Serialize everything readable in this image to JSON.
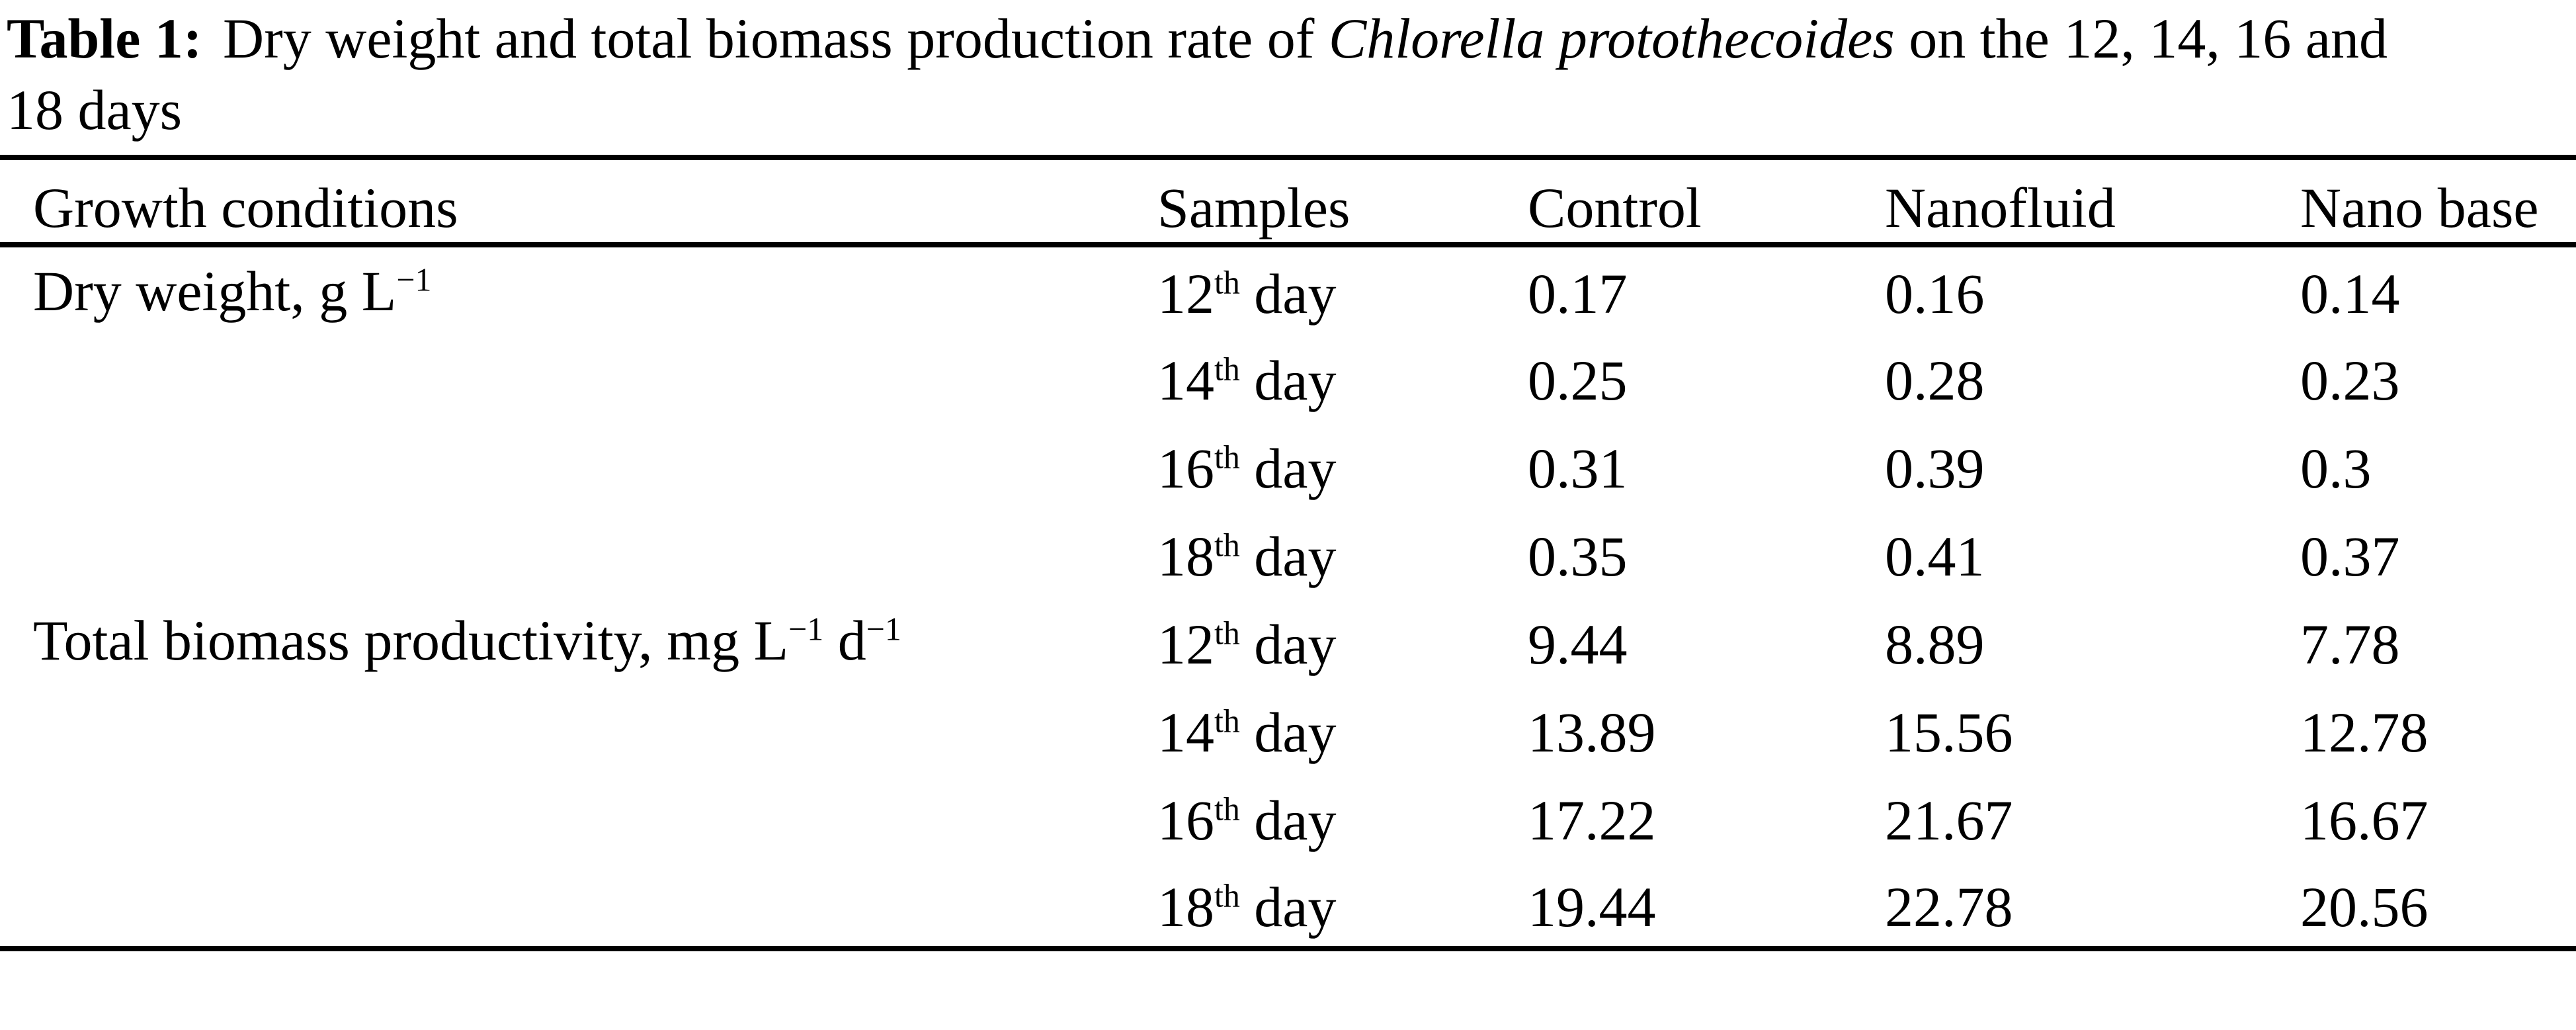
{
  "caption": {
    "label": "Table 1:",
    "before_species": " Dry weight and total biomass production rate of ",
    "species": "Chlorella protothecoides",
    "after_species": " on the 12, 14, 16 and",
    "line2": "18 days"
  },
  "table": {
    "headers": {
      "growth_conditions": "Growth conditions",
      "samples": "Samples",
      "control": "Control",
      "nanofluid": "Nanofluid",
      "nano_base": "Nano base"
    },
    "sections": [
      {
        "condition_parts": [
          {
            "text": "Dry weight, g L"
          },
          {
            "sup": "−1"
          }
        ],
        "rows": [
          {
            "day": "12",
            "ordinal": "th",
            "day_word": "day",
            "control": "0.17",
            "nanofluid": "0.16",
            "nano_base": "0.14"
          },
          {
            "day": "14",
            "ordinal": "th",
            "day_word": "day",
            "control": "0.25",
            "nanofluid": "0.28",
            "nano_base": "0.23"
          },
          {
            "day": "16",
            "ordinal": "th",
            "day_word": "day",
            "control": "0.31",
            "nanofluid": "0.39",
            "nano_base": "0.3"
          },
          {
            "day": "18",
            "ordinal": "th",
            "day_word": "day",
            "control": "0.35",
            "nanofluid": "0.41",
            "nano_base": "0.37"
          }
        ]
      },
      {
        "condition_parts": [
          {
            "text": "Total biomass productivity, mg L"
          },
          {
            "sup": "−1"
          },
          {
            "text": " d"
          },
          {
            "sup": "−1"
          }
        ],
        "rows": [
          {
            "day": "12",
            "ordinal": "th",
            "day_word": "day",
            "control": "9.44",
            "nanofluid": "8.89",
            "nano_base": "7.78"
          },
          {
            "day": "14",
            "ordinal": "th",
            "day_word": "day",
            "control": "13.89",
            "nanofluid": "15.56",
            "nano_base": "12.78"
          },
          {
            "day": "16",
            "ordinal": "th",
            "day_word": "day",
            "control": "17.22",
            "nanofluid": "21.67",
            "nano_base": "16.67"
          },
          {
            "day": "18",
            "ordinal": "th",
            "day_word": "day",
            "control": "19.44",
            "nanofluid": "22.78",
            "nano_base": "20.56"
          }
        ]
      }
    ]
  },
  "chart_data": {
    "type": "table",
    "title": "Table 1: Dry weight and total biomass production rate of Chlorella protothecoides on the 12, 14, 16 and 18 days",
    "columns": [
      "Growth conditions",
      "Samples",
      "Control",
      "Nanofluid",
      "Nano base"
    ],
    "rows": [
      [
        "Dry weight, g L−1",
        "12th day",
        0.17,
        0.16,
        0.14
      ],
      [
        "",
        "14th day",
        0.25,
        0.28,
        0.23
      ],
      [
        "",
        "16th day",
        0.31,
        0.39,
        0.3
      ],
      [
        "",
        "18th day",
        0.35,
        0.41,
        0.37
      ],
      [
        "Total biomass productivity, mg L−1 d−1",
        "12th day",
        9.44,
        8.89,
        7.78
      ],
      [
        "",
        "14th day",
        13.89,
        15.56,
        12.78
      ],
      [
        "",
        "16th day",
        17.22,
        21.67,
        16.67
      ],
      [
        "",
        "18th day",
        19.44,
        22.78,
        20.56
      ]
    ]
  },
  "colors": {
    "text": "#000000",
    "background": "#ffffff",
    "rule": "#000000"
  }
}
